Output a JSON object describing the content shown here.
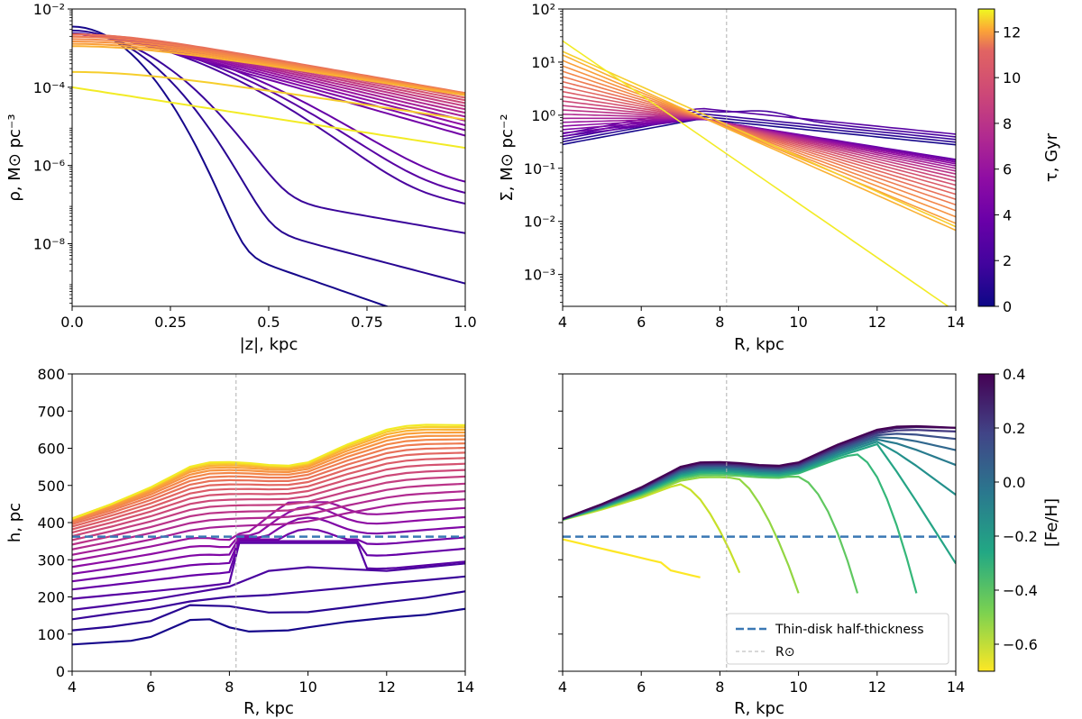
{
  "chart_data": [
    {
      "id": "rho_z",
      "type": "line",
      "xlabel": "|z|, kpc",
      "ylabel": "ρ, M⊙ pc⁻³",
      "xscale": "linear",
      "yscale": "log",
      "xlim": [
        0,
        1
      ],
      "ylim_log10": [
        -9.6,
        -2
      ],
      "xticks": [
        "0.0",
        "0.25",
        "0.5",
        "0.75",
        "1.0"
      ],
      "yticks": [
        "10⁻⁸",
        "10⁻⁶",
        "10⁻⁴",
        "10⁻²"
      ],
      "colored_by": "τ, Gyr",
      "n_curves": 26,
      "tau_range": [
        0.25,
        12.75
      ],
      "description": "log10 density vs |z|, one curve per age bin; young curves steep, old curves broad"
    },
    {
      "id": "sigma_R",
      "type": "line",
      "xlabel": "R, kpc",
      "ylabel": "Σ, M⊙ pc⁻²",
      "xscale": "linear",
      "yscale": "log",
      "xlim": [
        4,
        14
      ],
      "ylim_log10": [
        -3.6,
        2
      ],
      "xticks": [
        "4",
        "6",
        "8",
        "10",
        "12",
        "14"
      ],
      "yticks": [
        "10⁻³",
        "10⁻²",
        "10⁻¹",
        "10⁰",
        "10¹",
        "10²"
      ],
      "vline_R_sun": 8.17,
      "colored_by": "τ, Gyr",
      "n_curves": 26,
      "tau_range": [
        0.25,
        12.75
      ]
    },
    {
      "id": "h_R_age",
      "type": "line",
      "xlabel": "R, kpc",
      "ylabel": "h, pc",
      "xlim": [
        4,
        14
      ],
      "ylim": [
        0,
        800
      ],
      "xticks": [
        "4",
        "6",
        "8",
        "10",
        "12",
        "14"
      ],
      "yticks": [
        "0",
        "100",
        "200",
        "300",
        "400",
        "500",
        "600",
        "700",
        "800"
      ],
      "thin_disk_half_thickness": 362,
      "vline_R_sun": 8.17,
      "colored_by": "τ, Gyr",
      "n_curves": 26,
      "tau_range": [
        0.25,
        12.75
      ],
      "base_curve": {
        "R": [
          4,
          5,
          6,
          7,
          7.5,
          8,
          8.5,
          9,
          9.5,
          10,
          11,
          12,
          12.5,
          13,
          14
        ],
        "h": [
          410,
          450,
          495,
          550,
          562,
          563,
          560,
          555,
          553,
          562,
          610,
          650,
          660,
          663,
          662
        ]
      },
      "young_curves": [
        {
          "R": [
            4,
            5.5,
            6,
            7,
            7.5,
            8,
            8.5,
            9.5,
            10,
            11,
            12,
            13,
            14
          ],
          "h": [
            72,
            82,
            92,
            138,
            140,
            118,
            107,
            110,
            118,
            133,
            144,
            152,
            168
          ]
        },
        {
          "R": [
            4,
            5,
            6,
            7,
            8,
            9,
            10,
            11,
            12,
            13,
            14
          ],
          "h": [
            110,
            120,
            135,
            178,
            175,
            158,
            159,
            172,
            186,
            198,
            215
          ]
        },
        {
          "R": [
            4,
            5,
            6,
            7,
            8,
            9,
            10,
            11,
            12,
            13,
            14
          ],
          "h": [
            140,
            155,
            168,
            188,
            200,
            205,
            215,
            225,
            236,
            245,
            255
          ]
        },
        {
          "R": [
            4,
            5,
            6,
            7,
            8,
            9,
            10,
            11,
            12,
            13,
            14
          ],
          "h": [
            165,
            178,
            192,
            210,
            228,
            270,
            280,
            275,
            270,
            280,
            290
          ]
        }
      ]
    },
    {
      "id": "h_R_feh",
      "type": "line",
      "xlabel": "R, kpc",
      "xlim": [
        4,
        14
      ],
      "ylim": [
        0,
        800
      ],
      "xticks": [
        "4",
        "6",
        "8",
        "10",
        "12",
        "14"
      ],
      "thin_disk_half_thickness": 362,
      "vline_R_sun": 8.17,
      "colored_by": "[Fe/H]",
      "n_curves": 13,
      "feh_range": [
        -0.7,
        0.4
      ],
      "legend": {
        "position": "lower-right",
        "entries": [
          "Thin-disk half-thickness",
          "R⊙"
        ]
      }
    }
  ],
  "colorbars": [
    {
      "label": "τ, Gyr",
      "range": [
        0,
        13
      ],
      "ticks": [
        "0",
        "2",
        "4",
        "6",
        "8",
        "10",
        "12"
      ],
      "colormap": "plasma"
    },
    {
      "label": "[Fe/H]",
      "range": [
        -0.7,
        0.4
      ],
      "ticks": [
        "−0.6",
        "−0.4",
        "−0.2",
        "0.0",
        "0.2",
        "0.4"
      ],
      "colormap": "viridis_r"
    }
  ],
  "colors": {
    "thin_disk_line": "#3a78b4",
    "r_sun_line": "#b0b0b0"
  }
}
